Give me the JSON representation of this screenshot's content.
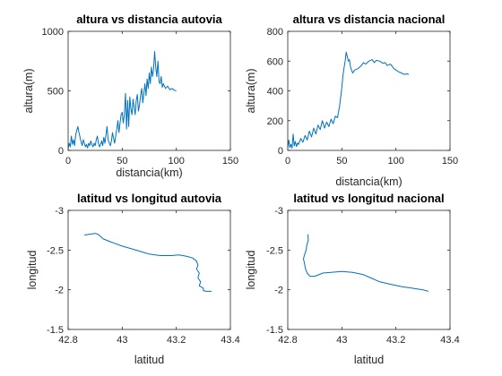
{
  "chart_data": [
    {
      "type": "line",
      "title": "altura vs distancia autovia",
      "xlabel": "distancia(km)",
      "ylabel": "altura(m)",
      "xlim": [
        0,
        150
      ],
      "ylim": [
        0,
        1000
      ],
      "xticks": [
        0,
        50,
        100,
        150
      ],
      "yticks": [
        0,
        500,
        1000
      ],
      "y_reversed": false,
      "grid": false,
      "line_color": "#0072BD",
      "series": [
        {
          "x": [
            0,
            1,
            2,
            3,
            4,
            5,
            6,
            7,
            8,
            9,
            10,
            11,
            12,
            13,
            14,
            15,
            16,
            17,
            18,
            19,
            20,
            21,
            22,
            23,
            24,
            25,
            26,
            27,
            28,
            29,
            30,
            31,
            32,
            33,
            34,
            35,
            36,
            37,
            38,
            39,
            40,
            41,
            42,
            43,
            44,
            45,
            46,
            47,
            48,
            49,
            50,
            51,
            52,
            53,
            54,
            55,
            56,
            57,
            58,
            59,
            60,
            61,
            62,
            63,
            64,
            65,
            66,
            67,
            68,
            69,
            70,
            71,
            72,
            73,
            74,
            75,
            76,
            77,
            78,
            79,
            80,
            81,
            82,
            83,
            84,
            85,
            86,
            87,
            88,
            90,
            92,
            94,
            96,
            98,
            100
          ],
          "y": [
            10,
            60,
            30,
            120,
            50,
            90,
            40,
            130,
            170,
            200,
            150,
            110,
            70,
            40,
            90,
            60,
            30,
            50,
            20,
            60,
            40,
            80,
            50,
            30,
            60,
            40,
            90,
            120,
            60,
            30,
            50,
            80,
            40,
            110,
            60,
            130,
            200,
            90,
            60,
            40,
            80,
            150,
            100,
            60,
            120,
            180,
            250,
            150,
            230,
            300,
            320,
            230,
            300,
            480,
            180,
            420,
            200,
            450,
            350,
            300,
            430,
            360,
            300,
            420,
            470,
            330,
            380,
            460,
            520,
            400,
            480,
            560,
            460,
            600,
            520,
            650,
            560,
            700,
            620,
            680,
            830,
            700,
            620,
            750,
            580,
            560,
            620,
            530,
            560,
            520,
            540,
            510,
            520,
            505,
            500
          ]
        }
      ]
    },
    {
      "type": "line",
      "title": "altura vs distancia nacional",
      "xlabel": "distancia(km)",
      "ylabel": "altura(m)",
      "xlim": [
        0,
        150
      ],
      "ylim": [
        0,
        800
      ],
      "xticks": [
        0,
        50,
        100,
        150
      ],
      "yticks": [
        0,
        200,
        400,
        600,
        800
      ],
      "y_reversed": false,
      "grid": false,
      "line_color": "#0072BD",
      "series": [
        {
          "x": [
            0,
            1,
            2,
            3,
            4,
            5,
            6,
            7,
            8,
            9,
            10,
            12,
            14,
            16,
            18,
            20,
            22,
            24,
            26,
            28,
            30,
            32,
            34,
            36,
            38,
            40,
            42,
            44,
            46,
            48,
            50,
            51,
            52,
            53,
            54,
            55,
            56,
            57,
            58,
            60,
            62,
            65,
            68,
            70,
            72,
            75,
            78,
            80,
            82,
            85,
            88,
            90,
            92,
            95,
            98,
            100,
            102,
            105,
            108,
            110,
            112
          ],
          "y": [
            10,
            70,
            20,
            40,
            15,
            110,
            30,
            60,
            25,
            50,
            40,
            80,
            55,
            100,
            70,
            130,
            90,
            150,
            110,
            170,
            140,
            200,
            150,
            190,
            160,
            210,
            180,
            230,
            220,
            300,
            420,
            500,
            550,
            600,
            660,
            630,
            600,
            610,
            560,
            520,
            540,
            550,
            570,
            590,
            580,
            600,
            610,
            590,
            605,
            600,
            585,
            590,
            570,
            580,
            550,
            540,
            530,
            520,
            510,
            515,
            510
          ]
        }
      ]
    },
    {
      "type": "line",
      "title": "latitud vs longitud autovia",
      "xlabel": "latitud",
      "ylabel": "longitud",
      "xlim": [
        42.8,
        43.4
      ],
      "ylim": [
        -3,
        -1.5
      ],
      "xticks": [
        42.8,
        43,
        43.2,
        43.4
      ],
      "yticks": [
        -3,
        -2.5,
        -2,
        -1.5
      ],
      "y_reversed": true,
      "grid": false,
      "line_color": "#0072BD",
      "series": [
        {
          "x": [
            42.86,
            42.9,
            42.91,
            42.93,
            42.96,
            43.0,
            43.04,
            43.08,
            43.1,
            43.14,
            43.18,
            43.21,
            43.24,
            43.26,
            43.275,
            43.28,
            43.275,
            43.285,
            43.28,
            43.29,
            43.285,
            43.3,
            43.3,
            43.31,
            43.33
          ],
          "y": [
            -2.69,
            -2.71,
            -2.7,
            -2.64,
            -2.6,
            -2.55,
            -2.51,
            -2.47,
            -2.45,
            -2.43,
            -2.43,
            -2.44,
            -2.42,
            -2.4,
            -2.36,
            -2.31,
            -2.26,
            -2.21,
            -2.15,
            -2.1,
            -2.05,
            -2.02,
            -1.99,
            -1.98,
            -1.98
          ]
        }
      ]
    },
    {
      "type": "line",
      "title": "latitud vs longitud nacional",
      "xlabel": "latitud",
      "ylabel": "longitud",
      "xlim": [
        42.8,
        43.4
      ],
      "ylim": [
        -3,
        -1.5
      ],
      "xticks": [
        42.8,
        43,
        43.2,
        43.4
      ],
      "yticks": [
        -3,
        -2.5,
        -2,
        -1.5
      ],
      "y_reversed": true,
      "grid": false,
      "line_color": "#0072BD",
      "series": [
        {
          "x": [
            42.875,
            42.876,
            42.871,
            42.868,
            42.863,
            42.858,
            42.862,
            42.865,
            42.872,
            42.882,
            42.9,
            42.93,
            42.96,
            43.0,
            43.04,
            43.08,
            43.1,
            43.14,
            43.18,
            43.22,
            43.26,
            43.3,
            43.32
          ],
          "y": [
            -2.7,
            -2.62,
            -2.57,
            -2.5,
            -2.45,
            -2.39,
            -2.33,
            -2.27,
            -2.21,
            -2.17,
            -2.17,
            -2.21,
            -2.22,
            -2.23,
            -2.22,
            -2.19,
            -2.16,
            -2.1,
            -2.07,
            -2.04,
            -2.02,
            -2.0,
            -1.98
          ]
        }
      ]
    }
  ]
}
